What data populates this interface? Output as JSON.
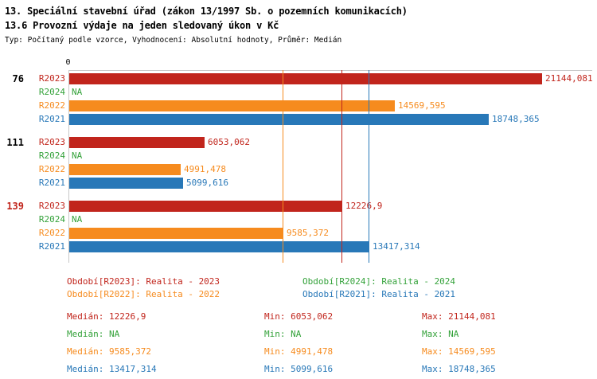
{
  "header": {
    "line1": "13. Speciální stavební úřad (zákon 13/1997 Sb. o pozemních komunikacích)",
    "line2": "13.6 Provozní výdaje na jeden sledovaný úkon v Kč",
    "meta": "Typ: Počítaný podle vzorce, Vyhodnocení: Absolutní hodnoty, Průměr: Medián"
  },
  "colors": {
    "R2023": "#c1251c",
    "R2024": "#34a23a",
    "R2022": "#f68b1e",
    "R2021": "#2878b8",
    "highlight_label": "#c1251c",
    "text": "#000000",
    "axis": "#c8c8c8"
  },
  "chart_data": {
    "type": "bar",
    "orientation": "horizontal",
    "title": "13.6 Provozní výdaje na jeden sledovaný úkon v Kč",
    "xlabel": "",
    "ylabel": "",
    "xlim": [
      0,
      21144.081
    ],
    "x_axis_zero_label": "0",
    "grid": false,
    "series_order": [
      "R2023",
      "R2024",
      "R2022",
      "R2021"
    ],
    "groups": [
      {
        "label": "76",
        "highlight": false,
        "bars": [
          {
            "series": "R2023",
            "value": 21144.081,
            "display": "21144,081"
          },
          {
            "series": "R2024",
            "value": null,
            "display": "NA"
          },
          {
            "series": "R2022",
            "value": 14569.595,
            "display": "14569,595"
          },
          {
            "series": "R2021",
            "value": 18748.365,
            "display": "18748,365"
          }
        ]
      },
      {
        "label": "111",
        "highlight": false,
        "bars": [
          {
            "series": "R2023",
            "value": 6053.062,
            "display": "6053,062"
          },
          {
            "series": "R2024",
            "value": null,
            "display": "NA"
          },
          {
            "series": "R2022",
            "value": 4991.478,
            "display": "4991,478"
          },
          {
            "series": "R2021",
            "value": 5099.616,
            "display": "5099,616"
          }
        ]
      },
      {
        "label": "139",
        "highlight": true,
        "bars": [
          {
            "series": "R2023",
            "value": 12226.9,
            "display": "12226,9"
          },
          {
            "series": "R2024",
            "value": null,
            "display": "NA"
          },
          {
            "series": "R2022",
            "value": 9585.372,
            "display": "9585,372"
          },
          {
            "series": "R2021",
            "value": 13417.314,
            "display": "13417,314"
          }
        ]
      }
    ],
    "median_lines": [
      {
        "series": "R2022",
        "value": 9585.372
      },
      {
        "series": "R2023",
        "value": 12226.9
      },
      {
        "series": "R2021",
        "value": 13417.314
      }
    ]
  },
  "legend": [
    {
      "series": "R2023",
      "label": "Období[R2023]: Realita - 2023",
      "col": 0,
      "row": 0
    },
    {
      "series": "R2024",
      "label": "Období[R2024]: Realita - 2024",
      "col": 1,
      "row": 0
    },
    {
      "series": "R2022",
      "label": "Období[R2022]: Realita - 2022",
      "col": 0,
      "row": 1
    },
    {
      "series": "R2021",
      "label": "Období[R2021]: Realita - 2021",
      "col": 1,
      "row": 1
    }
  ],
  "stats_labels": {
    "median": "Medián",
    "min": "Min",
    "max": "Max"
  },
  "stats": [
    {
      "series": "R2023",
      "median": "12226,9",
      "min": "6053,062",
      "max": "21144,081"
    },
    {
      "series": "R2024",
      "median": "NA",
      "min": "NA",
      "max": "NA"
    },
    {
      "series": "R2022",
      "median": "9585,372",
      "min": "4991,478",
      "max": "14569,595"
    },
    {
      "series": "R2021",
      "median": "13417,314",
      "min": "5099,616",
      "max": "18748,365"
    }
  ]
}
